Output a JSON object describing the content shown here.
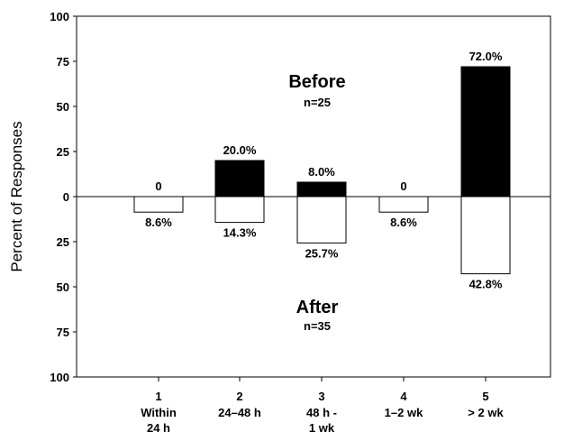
{
  "chart_data": {
    "type": "bar",
    "ylabel": "Percent of Responses",
    "ylim": [
      -100,
      100
    ],
    "y_ticks": [
      {
        "value": 100,
        "label": "100"
      },
      {
        "value": 75,
        "label": "75"
      },
      {
        "value": 50,
        "label": "50"
      },
      {
        "value": 25,
        "label": "25"
      },
      {
        "value": 0,
        "label": "0"
      },
      {
        "value": -25,
        "label": "25"
      },
      {
        "value": -50,
        "label": "50"
      },
      {
        "value": -75,
        "label": "75"
      },
      {
        "value": -100,
        "label": "100"
      }
    ],
    "categories": [
      {
        "number": "1",
        "line1": "Within",
        "line2": "24 h"
      },
      {
        "number": "2",
        "line1": "24–48 h",
        "line2": ""
      },
      {
        "number": "3",
        "line1": "48 h -",
        "line2": "1 wk"
      },
      {
        "number": "4",
        "line1": "1–2 wk",
        "line2": ""
      },
      {
        "number": "5",
        "line1": "> 2 wk",
        "line2": ""
      }
    ],
    "series": [
      {
        "name": "Before",
        "n_label": "n=25",
        "direction": "up",
        "color": "#000000",
        "values": [
          0,
          20.0,
          8.0,
          0,
          72.0
        ],
        "data_labels": [
          "0",
          "20.0%",
          "8.0%",
          "0",
          "72.0%"
        ]
      },
      {
        "name": "After",
        "n_label": "n=35",
        "direction": "down",
        "color": "#ffffff",
        "values": [
          8.6,
          14.3,
          25.7,
          8.6,
          42.8
        ],
        "data_labels": [
          "8.6%",
          "14.3%",
          "25.7%",
          "8.6%",
          "42.8%"
        ]
      }
    ],
    "grid": false,
    "zero_line": true
  }
}
